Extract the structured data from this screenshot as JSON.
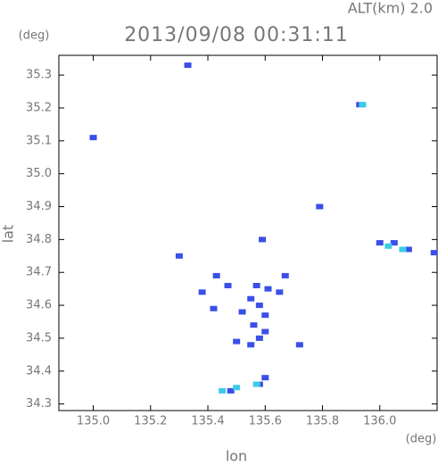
{
  "chart_data": {
    "type": "scatter",
    "title": "2013/09/08 00:31:11",
    "subtitle": "ALT(km) 2.0",
    "x_label": "lon",
    "y_label": "lat",
    "x_unit": "(deg)",
    "y_unit": "(deg)",
    "xlim": [
      134.88,
      136.2
    ],
    "ylim": [
      34.28,
      35.36
    ],
    "xticks": [
      {
        "value": 135,
        "label": "135.0"
      },
      135.2,
      135.4,
      135.6,
      135.8,
      {
        "value": 136,
        "label": "136.0"
      }
    ],
    "yticks": [
      34.3,
      34.4,
      34.5,
      34.6,
      34.7,
      34.8,
      34.9,
      {
        "value": 35,
        "label": "35.0"
      },
      35.1,
      35.2,
      35.3
    ],
    "series": [
      {
        "color": "#3a4fe6",
        "x": [
          135.33,
          135.0,
          135.93,
          135.79,
          135.59,
          135.3,
          136.0,
          136.05,
          136.1,
          136.19,
          135.43,
          135.67,
          135.38,
          135.47,
          135.57,
          135.61,
          135.65,
          135.55,
          135.58,
          135.42,
          135.52,
          135.6,
          135.56,
          135.6,
          135.58,
          135.5,
          135.55,
          135.72,
          135.6,
          135.58,
          135.48
        ],
        "values": [
          35.33,
          35.11,
          35.21,
          34.9,
          34.8,
          34.75,
          34.79,
          34.79,
          34.77,
          34.76,
          34.69,
          34.69,
          34.64,
          34.66,
          34.66,
          34.65,
          34.64,
          34.62,
          34.6,
          34.59,
          34.58,
          34.57,
          34.54,
          34.52,
          34.5,
          34.49,
          34.48,
          34.48,
          34.38,
          34.36,
          34.34
        ]
      },
      {
        "color": "#3ccbe8",
        "x": [
          135.94,
          136.03,
          136.08,
          135.5,
          135.45,
          135.57
        ],
        "values": [
          35.21,
          34.78,
          34.77,
          34.35,
          34.34,
          34.36
        ]
      }
    ]
  }
}
